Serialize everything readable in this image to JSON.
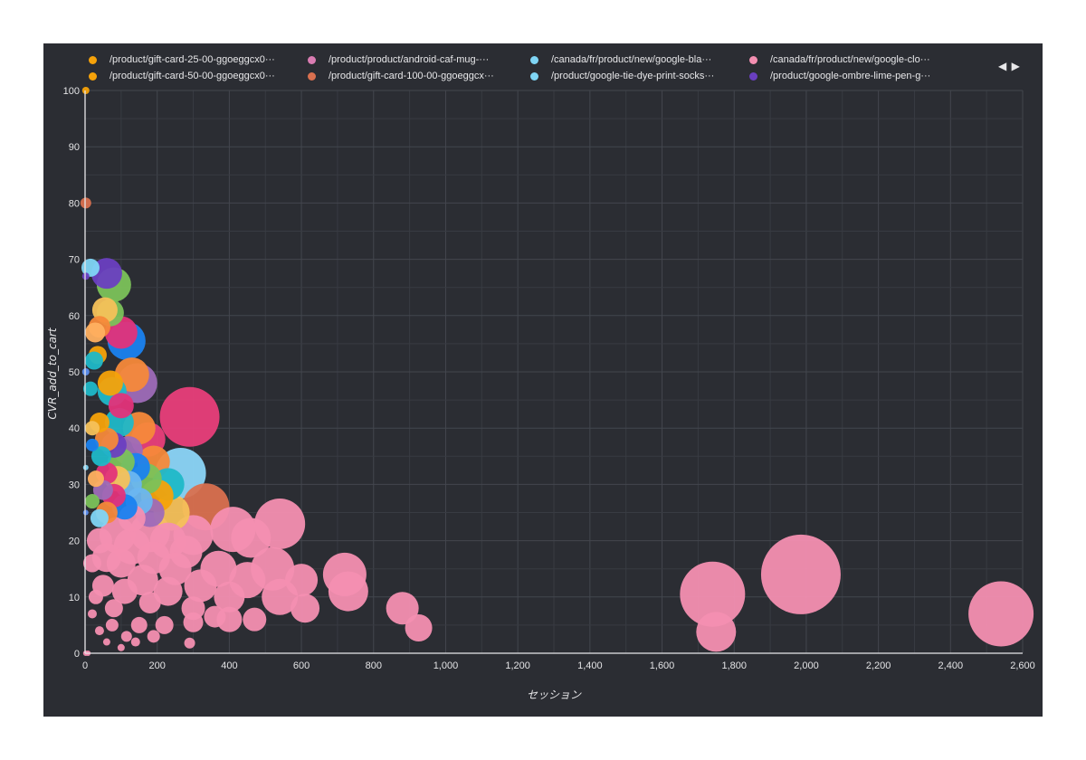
{
  "chart_data": {
    "type": "scatter",
    "title": "",
    "xlabel": "セッション",
    "ylabel": "CVR_add_to_cart",
    "xlim": [
      0,
      2600
    ],
    "ylim": [
      0,
      100
    ],
    "x_ticks": [
      "0",
      "200",
      "400",
      "600",
      "800",
      "1,000",
      "1,200",
      "1,400",
      "1,600",
      "1,800",
      "2,000",
      "2,200",
      "2,400",
      "2,600"
    ],
    "y_ticks": [
      "0",
      "10",
      "20",
      "30",
      "40",
      "50",
      "60",
      "70",
      "80",
      "90",
      "100"
    ],
    "x_tick_values": [
      0,
      200,
      400,
      600,
      800,
      1000,
      1200,
      1400,
      1600,
      1800,
      2000,
      2200,
      2400,
      2600
    ],
    "y_tick_values": [
      0,
      10,
      20,
      30,
      40,
      50,
      60,
      70,
      80,
      90,
      100
    ],
    "grid": true,
    "legend_position": "top",
    "legend": [
      {
        "name": "/product/gift-card-25-00-ggoeggcx0···",
        "color": "#f5a20a"
      },
      {
        "name": "/product/gift-card-50-00-ggoeggcx0···",
        "color": "#f5a20a"
      },
      {
        "name": "/product/product/android-caf-mug-···",
        "color": "#d97cb2"
      },
      {
        "name": "/product/gift-card-100-00-ggoeggcx···",
        "color": "#d9704f"
      },
      {
        "name": "/canada/fr/product/new/google-bla···",
        "color": "#7fd5f5"
      },
      {
        "name": "/product/google-tie-dye-print-socks···",
        "color": "#7fd5f5"
      },
      {
        "name": "/canada/fr/product/new/google-clo···",
        "color": "#f48fb1"
      },
      {
        "name": "/product/google-ombre-lime-pen-g···",
        "color": "#6a3fc1"
      }
    ],
    "pager": {
      "prev": "◀",
      "next": "▶"
    },
    "points": [
      {
        "x": 2,
        "y": 100,
        "r": 4,
        "color": "#f5a20a"
      },
      {
        "x": 2,
        "y": 80,
        "r": 6,
        "color": "#d9704f"
      },
      {
        "x": 2,
        "y": 67,
        "r": 4,
        "color": "#6a3fc1"
      },
      {
        "x": 2,
        "y": 50,
        "r": 4,
        "color": "#5b8ef0"
      },
      {
        "x": 2,
        "y": 33,
        "r": 3,
        "color": "#7fd5f5"
      },
      {
        "x": 2,
        "y": 25,
        "r": 3,
        "color": "#5b8ef0"
      },
      {
        "x": 2,
        "y": 0,
        "r": 3,
        "color": "#f48fb1"
      },
      {
        "x": 8,
        "y": 0,
        "r": 3,
        "color": "#f48fb1"
      },
      {
        "x": 15,
        "y": 68.5,
        "r": 10,
        "color": "#7fd5f5"
      },
      {
        "x": 60,
        "y": 67.5,
        "r": 17,
        "color": "#6a3fc1"
      },
      {
        "x": 80,
        "y": 65.5,
        "r": 19,
        "color": "#7bc25a"
      },
      {
        "x": 55,
        "y": 61,
        "r": 14,
        "color": "#f5c15a"
      },
      {
        "x": 70,
        "y": 60.5,
        "r": 15,
        "color": "#7bc25a"
      },
      {
        "x": 40,
        "y": 58,
        "r": 12,
        "color": "#f5893a"
      },
      {
        "x": 100,
        "y": 57,
        "r": 18,
        "color": "#e3337a"
      },
      {
        "x": 28,
        "y": 57,
        "r": 11,
        "color": "#ffb060"
      },
      {
        "x": 115,
        "y": 55.5,
        "r": 21,
        "color": "#1a82f0"
      },
      {
        "x": 35,
        "y": 53,
        "r": 10,
        "color": "#f5a20a"
      },
      {
        "x": 25,
        "y": 52,
        "r": 10,
        "color": "#1fb8c8"
      },
      {
        "x": 130,
        "y": 49.5,
        "r": 19,
        "color": "#f5893a"
      },
      {
        "x": 145,
        "y": 48,
        "r": 22,
        "color": "#9e6bb8"
      },
      {
        "x": 70,
        "y": 48,
        "r": 14,
        "color": "#f5a20a"
      },
      {
        "x": 75,
        "y": 46.5,
        "r": 16,
        "color": "#1fb8c8"
      },
      {
        "x": 15,
        "y": 47,
        "r": 8,
        "color": "#1fb8c8"
      },
      {
        "x": 100,
        "y": 44,
        "r": 14,
        "color": "#e3337a"
      },
      {
        "x": 290,
        "y": 42,
        "r": 33,
        "color": "#e83e7a"
      },
      {
        "x": 40,
        "y": 41,
        "r": 11,
        "color": "#f5a20a"
      },
      {
        "x": 95,
        "y": 41,
        "r": 16,
        "color": "#1fb8c8"
      },
      {
        "x": 20,
        "y": 40,
        "r": 8,
        "color": "#f5c15a"
      },
      {
        "x": 150,
        "y": 40,
        "r": 18,
        "color": "#f5893a"
      },
      {
        "x": 175,
        "y": 38,
        "r": 19,
        "color": "#e83e7a"
      },
      {
        "x": 60,
        "y": 38,
        "r": 13,
        "color": "#f5893a"
      },
      {
        "x": 20,
        "y": 37,
        "r": 7,
        "color": "#1a82f0"
      },
      {
        "x": 80,
        "y": 37,
        "r": 14,
        "color": "#6a3fc1"
      },
      {
        "x": 120,
        "y": 36,
        "r": 16,
        "color": "#9e6bb8"
      },
      {
        "x": 45,
        "y": 35,
        "r": 11,
        "color": "#1fb8c8"
      },
      {
        "x": 190,
        "y": 34,
        "r": 18,
        "color": "#f5893a"
      },
      {
        "x": 100,
        "y": 34,
        "r": 15,
        "color": "#7bc25a"
      },
      {
        "x": 265,
        "y": 32,
        "r": 28,
        "color": "#8bd5f8"
      },
      {
        "x": 140,
        "y": 33,
        "r": 16,
        "color": "#1a82f0"
      },
      {
        "x": 60,
        "y": 32,
        "r": 12,
        "color": "#e3337a"
      },
      {
        "x": 30,
        "y": 31,
        "r": 9,
        "color": "#ffb060"
      },
      {
        "x": 170,
        "y": 31,
        "r": 17,
        "color": "#7bc25a"
      },
      {
        "x": 90,
        "y": 31,
        "r": 14,
        "color": "#f5c15a"
      },
      {
        "x": 120,
        "y": 30,
        "r": 15,
        "color": "#6bb6f0"
      },
      {
        "x": 230,
        "y": 30,
        "r": 18,
        "color": "#1fb8c8"
      },
      {
        "x": 50,
        "y": 29,
        "r": 11,
        "color": "#9e6bb8"
      },
      {
        "x": 200,
        "y": 28,
        "r": 18,
        "color": "#f5a20a"
      },
      {
        "x": 80,
        "y": 28,
        "r": 13,
        "color": "#e3337a"
      },
      {
        "x": 150,
        "y": 27,
        "r": 15,
        "color": "#6bb6f0"
      },
      {
        "x": 20,
        "y": 27,
        "r": 8,
        "color": "#7bc25a"
      },
      {
        "x": 335,
        "y": 26,
        "r": 26,
        "color": "#d9704f"
      },
      {
        "x": 240,
        "y": 25,
        "r": 20,
        "color": "#f5c15a"
      },
      {
        "x": 110,
        "y": 26,
        "r": 14,
        "color": "#1a82f0"
      },
      {
        "x": 60,
        "y": 25,
        "r": 12,
        "color": "#f5893a"
      },
      {
        "x": 180,
        "y": 25,
        "r": 16,
        "color": "#9e6bb8"
      },
      {
        "x": 40,
        "y": 24,
        "r": 10,
        "color": "#7fd5f5"
      },
      {
        "x": 130,
        "y": 24,
        "r": 15,
        "color": "#f48fb1"
      },
      {
        "x": 540,
        "y": 23,
        "r": 28,
        "color": "#f48fb1"
      },
      {
        "x": 410,
        "y": 22,
        "r": 25,
        "color": "#f48fb1"
      },
      {
        "x": 460,
        "y": 20.5,
        "r": 22,
        "color": "#f48fb1"
      },
      {
        "x": 300,
        "y": 21,
        "r": 22,
        "color": "#f48fb1"
      },
      {
        "x": 180,
        "y": 21.5,
        "r": 22,
        "color": "#f48fb1"
      },
      {
        "x": 90,
        "y": 21,
        "r": 20,
        "color": "#f48fb1"
      },
      {
        "x": 230,
        "y": 20,
        "r": 20,
        "color": "#f48fb1"
      },
      {
        "x": 40,
        "y": 20,
        "r": 14,
        "color": "#f48fb1"
      },
      {
        "x": 130,
        "y": 19,
        "r": 20,
        "color": "#f48fb1"
      },
      {
        "x": 280,
        "y": 18,
        "r": 18,
        "color": "#f48fb1"
      },
      {
        "x": 60,
        "y": 17,
        "r": 16,
        "color": "#f48fb1"
      },
      {
        "x": 190,
        "y": 17,
        "r": 18,
        "color": "#f48fb1"
      },
      {
        "x": 20,
        "y": 16,
        "r": 10,
        "color": "#f48fb1"
      },
      {
        "x": 100,
        "y": 16,
        "r": 16,
        "color": "#f48fb1"
      },
      {
        "x": 520,
        "y": 15,
        "r": 24,
        "color": "#f48fb1"
      },
      {
        "x": 370,
        "y": 15,
        "r": 20,
        "color": "#f48fb1"
      },
      {
        "x": 250,
        "y": 15,
        "r": 18,
        "color": "#f48fb1"
      },
      {
        "x": 600,
        "y": 13,
        "r": 18,
        "color": "#f48fb1"
      },
      {
        "x": 720,
        "y": 14,
        "r": 24,
        "color": "#f48fb1"
      },
      {
        "x": 730,
        "y": 11,
        "r": 22,
        "color": "#f48fb1"
      },
      {
        "x": 450,
        "y": 13,
        "r": 20,
        "color": "#f48fb1"
      },
      {
        "x": 160,
        "y": 13,
        "r": 17,
        "color": "#f48fb1"
      },
      {
        "x": 320,
        "y": 12,
        "r": 18,
        "color": "#f48fb1"
      },
      {
        "x": 50,
        "y": 12,
        "r": 12,
        "color": "#f48fb1"
      },
      {
        "x": 230,
        "y": 11,
        "r": 16,
        "color": "#f48fb1"
      },
      {
        "x": 110,
        "y": 11,
        "r": 14,
        "color": "#f48fb1"
      },
      {
        "x": 540,
        "y": 10,
        "r": 20,
        "color": "#f48fb1"
      },
      {
        "x": 400,
        "y": 10,
        "r": 17,
        "color": "#f48fb1"
      },
      {
        "x": 30,
        "y": 10,
        "r": 8,
        "color": "#f48fb1"
      },
      {
        "x": 180,
        "y": 9,
        "r": 12,
        "color": "#f48fb1"
      },
      {
        "x": 610,
        "y": 8,
        "r": 16,
        "color": "#f48fb1"
      },
      {
        "x": 300,
        "y": 8,
        "r": 13,
        "color": "#f48fb1"
      },
      {
        "x": 80,
        "y": 8,
        "r": 10,
        "color": "#f48fb1"
      },
      {
        "x": 880,
        "y": 8,
        "r": 18,
        "color": "#f48fb1"
      },
      {
        "x": 1740,
        "y": 10.5,
        "r": 36,
        "color": "#f48fb1"
      },
      {
        "x": 1985,
        "y": 14,
        "r": 44,
        "color": "#f48fb1"
      },
      {
        "x": 1750,
        "y": 3.8,
        "r": 22,
        "color": "#f48fb1"
      },
      {
        "x": 2540,
        "y": 7,
        "r": 36,
        "color": "#f48fb1"
      },
      {
        "x": 925,
        "y": 4.5,
        "r": 15,
        "color": "#f48fb1"
      },
      {
        "x": 470,
        "y": 6,
        "r": 13,
        "color": "#f48fb1"
      },
      {
        "x": 400,
        "y": 6,
        "r": 14,
        "color": "#f48fb1"
      },
      {
        "x": 360,
        "y": 6.5,
        "r": 12,
        "color": "#f48fb1"
      },
      {
        "x": 300,
        "y": 5.5,
        "r": 11,
        "color": "#f48fb1"
      },
      {
        "x": 220,
        "y": 5,
        "r": 10,
        "color": "#f48fb1"
      },
      {
        "x": 150,
        "y": 5,
        "r": 9,
        "color": "#f48fb1"
      },
      {
        "x": 75,
        "y": 5,
        "r": 7,
        "color": "#f48fb1"
      },
      {
        "x": 40,
        "y": 4,
        "r": 5,
        "color": "#f48fb1"
      },
      {
        "x": 115,
        "y": 3,
        "r": 6,
        "color": "#f48fb1"
      },
      {
        "x": 190,
        "y": 3,
        "r": 7,
        "color": "#f48fb1"
      },
      {
        "x": 140,
        "y": 2,
        "r": 5,
        "color": "#f48fb1"
      },
      {
        "x": 60,
        "y": 2,
        "r": 4,
        "color": "#f48fb1"
      },
      {
        "x": 100,
        "y": 1,
        "r": 4,
        "color": "#f48fb1"
      },
      {
        "x": 290,
        "y": 1.8,
        "r": 6,
        "color": "#f48fb1"
      },
      {
        "x": 20,
        "y": 7,
        "r": 5,
        "color": "#f48fb1"
      }
    ]
  }
}
